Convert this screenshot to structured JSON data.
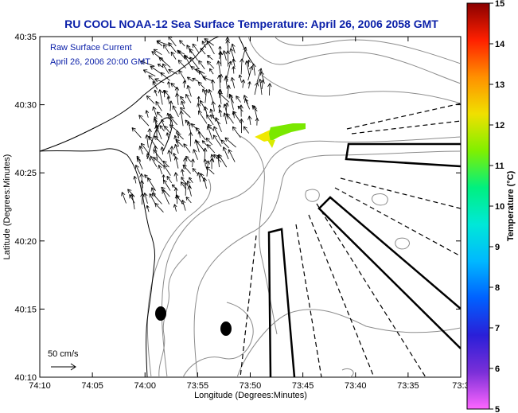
{
  "title": "RU COOL  NOAA-12  Sea Surface Temperature:  April 26, 2006 2058 GMT",
  "inset": {
    "line1": "Raw Surface Current",
    "line2": "April 26, 2006 20:00 GMT"
  },
  "scale_label": "50 cm/s",
  "axes": {
    "xlabel": "Longitude (Degrees:Minutes)",
    "ylabel": "Latitude (Degrees:Minutes)",
    "xticks": [
      "74:10",
      "74:05",
      "74:00",
      "73:55",
      "73:50",
      "73:45",
      "73:40",
      "73:35",
      "73:3"
    ],
    "yticks": [
      "40:10",
      "40:15",
      "40:20",
      "40:25",
      "40:30",
      "40:35"
    ]
  },
  "colorbar": {
    "label": "Temperature (°C)",
    "min": 5,
    "max": 15,
    "ticks": [
      "5",
      "6",
      "7",
      "8",
      "9",
      "10",
      "11",
      "12",
      "13",
      "14",
      "15"
    ],
    "stops": [
      "#ff66ff",
      "#7a2fd8",
      "#2a1fd8",
      "#0060ff",
      "#00b8ff",
      "#00e8d8",
      "#00f080",
      "#80f000",
      "#f0e000",
      "#ff9000",
      "#ff2000",
      "#8a0000"
    ]
  },
  "legend_colors": {
    "title": "#0a1fa8",
    "arrows": "#000000",
    "contours": "#909090",
    "sst_patch_yellow": "#f0e800",
    "sst_patch_green": "#7ae800"
  }
}
